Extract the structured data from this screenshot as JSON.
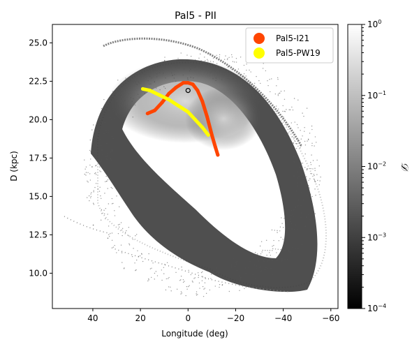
{
  "chart_data": {
    "type": "scatter",
    "title": "Pal5 - PII",
    "xlabel": "Longitude (deg)",
    "ylabel": "D (kpc)",
    "xlim": [
      57,
      -63
    ],
    "ylim": [
      7.7,
      26.2
    ],
    "xticks": [
      40,
      20,
      0,
      -20,
      -40,
      -60
    ],
    "xtick_labels": [
      "40",
      "20",
      "0",
      "−20",
      "−40",
      "−60"
    ],
    "yticks": [
      10.0,
      12.5,
      15.0,
      17.5,
      20.0,
      22.5,
      25.0
    ],
    "ytick_labels": [
      "10.0",
      "12.5",
      "15.0",
      "17.5",
      "20.0",
      "22.5",
      "25.0"
    ],
    "colorbar": {
      "label": "𝒟",
      "scale": "log",
      "range": [
        0.0001,
        1
      ],
      "ticks": [
        {
          "value": 1,
          "base": "10",
          "exp": "0"
        },
        {
          "value": 0.1,
          "base": "10",
          "exp": "−1"
        },
        {
          "value": 0.01,
          "base": "10",
          "exp": "−2"
        },
        {
          "value": 0.001,
          "base": "10",
          "exp": "−3"
        },
        {
          "value": 0.0001,
          "base": "10",
          "exp": "−4"
        }
      ]
    },
    "legend": {
      "placement": "top-right",
      "entries": [
        {
          "label": "Pal5-I21",
          "color": "#ff4500"
        },
        {
          "label": "Pal5-PW19",
          "color": "#ffff00"
        }
      ]
    },
    "series": [
      {
        "name": "Pal5-I21",
        "color": "#ff4500",
        "x": [
          17,
          14,
          11,
          8,
          5,
          2,
          0,
          -2,
          -4,
          -6,
          -8,
          -10,
          -11.5,
          -12.5
        ],
        "y": [
          20.4,
          20.6,
          21.1,
          21.7,
          22.1,
          22.4,
          22.4,
          22.3,
          21.9,
          21.2,
          20.2,
          19.0,
          18.2,
          17.7
        ]
      },
      {
        "name": "Pal5-PW19",
        "color": "#ffff00",
        "x": [
          19,
          16,
          12,
          8,
          4,
          0,
          -3,
          -6,
          -8.5
        ],
        "y": [
          22.0,
          21.9,
          21.6,
          21.3,
          20.9,
          20.5,
          20.0,
          19.5,
          19.0
        ]
      }
    ],
    "marker": {
      "x": 0,
      "y": 21.9
    },
    "stream_density": "grayscale point cloud forming a loop from about 38 to -57 deg longitude and 8.5 to 25.3 kpc; densest near 20 kpc at 0 to -20 deg"
  }
}
